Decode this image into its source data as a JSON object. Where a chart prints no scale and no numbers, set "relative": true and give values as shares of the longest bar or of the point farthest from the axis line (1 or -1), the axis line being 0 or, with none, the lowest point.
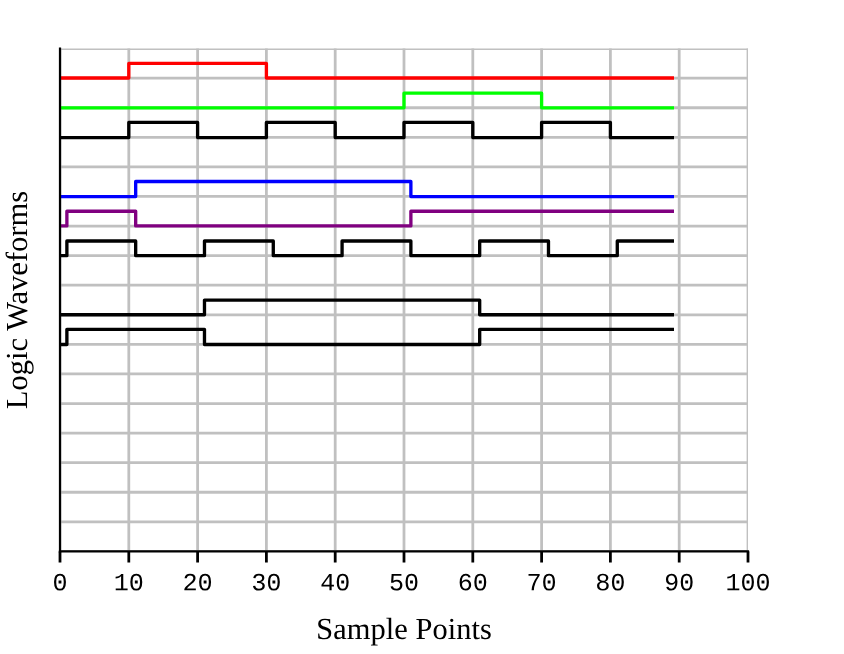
{
  "chart_data": {
    "type": "step",
    "xlabel": "Sample Points",
    "ylabel": "Logic Waveforms",
    "relative": true,
    "xlim": [
      0,
      100
    ],
    "xticks": [
      0,
      10,
      20,
      30,
      40,
      50,
      60,
      70,
      80,
      90,
      100
    ],
    "grid": true,
    "series": [
      {
        "color": "#ff0000",
        "x": [
          0,
          10,
          30,
          89
        ],
        "values": [
          0.97,
          1,
          0.97,
          0.97
        ]
      },
      {
        "color": "#00ff00",
        "x": [
          0,
          50,
          70,
          89
        ],
        "values": [
          0.909,
          0.939,
          0.909,
          0.909
        ]
      },
      {
        "color": "#000000",
        "x": [
          0,
          10,
          20,
          30,
          40,
          50,
          60,
          70,
          80,
          89
        ],
        "values": [
          0.848,
          0.879,
          0.848,
          0.879,
          0.848,
          0.879,
          0.848,
          0.879,
          0.848,
          0.848
        ]
      },
      {
        "color": "#0000ff",
        "x": [
          0,
          11,
          51,
          89
        ],
        "values": [
          0.727,
          0.758,
          0.727,
          0.727
        ]
      },
      {
        "color": "#800080",
        "x": [
          0,
          1,
          11,
          51,
          89
        ],
        "values": [
          0.667,
          0.697,
          0.667,
          0.697,
          0.697
        ]
      },
      {
        "color": "#000000",
        "x": [
          0,
          1,
          11,
          21,
          31,
          41,
          51,
          61,
          71,
          81,
          89
        ],
        "values": [
          0.606,
          0.636,
          0.606,
          0.636,
          0.606,
          0.636,
          0.606,
          0.636,
          0.606,
          0.636,
          0.636
        ]
      },
      {
        "color": "#000000",
        "x": [
          0,
          21,
          61,
          89
        ],
        "values": [
          0.485,
          0.515,
          0.485,
          0.485
        ]
      },
      {
        "color": "#000000",
        "x": [
          0,
          1,
          21,
          61,
          89
        ],
        "values": [
          0.424,
          0.455,
          0.424,
          0.455,
          0.455
        ]
      }
    ]
  }
}
